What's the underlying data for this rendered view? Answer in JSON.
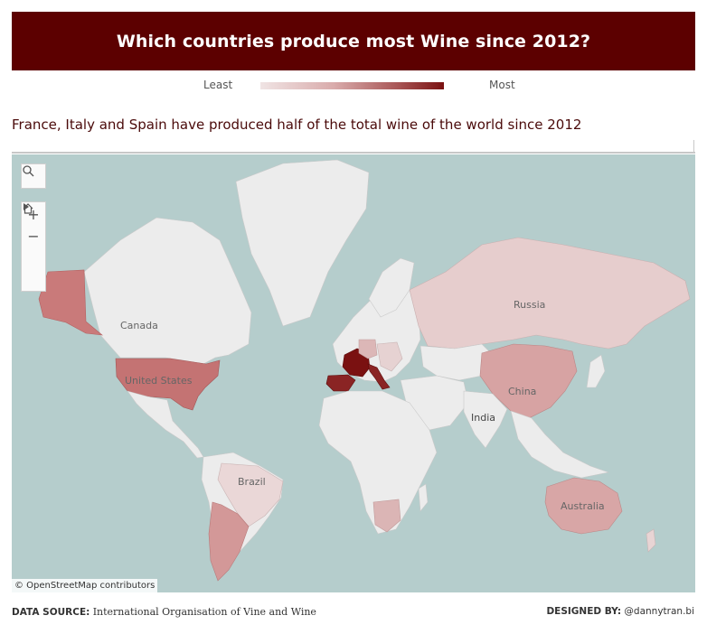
{
  "title": "Which countries produce most Wine since 2012?",
  "legend": {
    "least": "Least",
    "most": "Most"
  },
  "subtitle": "France, Italy and Spain have produced half of the total wine of the world since 2012",
  "map": {
    "labels": {
      "canada": "Canada",
      "united_states": "United States",
      "brazil": "Brazil",
      "russia": "Russia",
      "china": "China",
      "india": "India",
      "australia": "Australia"
    },
    "attribution": "© OpenStreetMap contributors",
    "colors": {
      "ocean": "#b5cdcc",
      "land": "#ececec",
      "most": "#7a1111",
      "least": "#f0e4e4"
    }
  },
  "footer": {
    "source_label": "DATA SOURCE:",
    "source_value": "International Organisation of Vine and Wine",
    "designer_label": "DESIGNED BY:",
    "designer_value": "@dannytran.bi"
  }
}
